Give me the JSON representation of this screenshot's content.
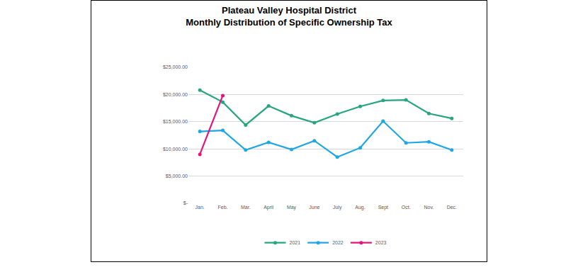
{
  "chart_data": {
    "type": "line",
    "title": [
      "Plateau Valley Hospital District",
      "Monthly Distribution of Specific Ownership Tax"
    ],
    "categories": [
      "Jan.",
      "Feb.",
      "Mar.",
      "April",
      "May",
      "June",
      "July",
      "Aug.",
      "Sept",
      "Oct.",
      "Nov.",
      "Dec."
    ],
    "series": [
      {
        "name": "2021",
        "color": "#26a67f",
        "marker": "circle",
        "values": [
          20800,
          18600,
          14400,
          17900,
          16100,
          14800,
          16400,
          17800,
          18900,
          19000,
          16500,
          15600
        ]
      },
      {
        "name": "2022",
        "color": "#1ea7e4",
        "marker": "circle",
        "values": [
          13200,
          13400,
          9800,
          11200,
          9900,
          11500,
          8500,
          10200,
          15100,
          11100,
          11300,
          9800
        ]
      },
      {
        "name": "2023",
        "color": "#e0157f",
        "marker": "circle",
        "values": [
          9000,
          19800,
          null,
          null,
          null,
          null,
          null,
          null,
          null,
          null,
          null,
          null
        ]
      }
    ],
    "ylim": [
      0,
      25000
    ],
    "yticks": [
      {
        "value": 0,
        "label": "$-"
      },
      {
        "value": 5000,
        "label": "$5,000.00"
      },
      {
        "value": 10000,
        "label": "$10,000.00"
      },
      {
        "value": 15000,
        "label": "$15,000.00"
      },
      {
        "value": 20000,
        "label": "$20,000.00"
      },
      {
        "value": 25000,
        "label": "$25,000.00"
      }
    ],
    "grid": true,
    "legend": "bottom"
  }
}
